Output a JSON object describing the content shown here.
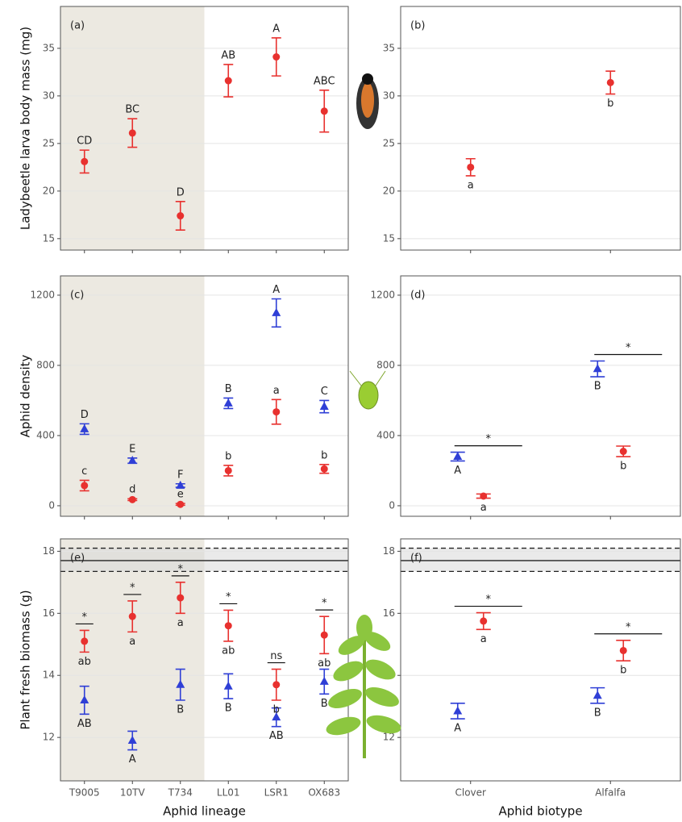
{
  "chart_data": [
    {
      "type": "errorbar",
      "panel_label": "(a)",
      "ylabel": "Ladybeetle larva body mass (mg)",
      "ylim": [
        13.8,
        39.4
      ],
      "yticks": [
        15,
        20,
        25,
        30,
        35
      ],
      "grid": true,
      "shaded_categories": 3,
      "series": [
        {
          "color": "#e8312f",
          "marker": "circle",
          "values": [
            23.1,
            26.1,
            17.4,
            31.6,
            34.1,
            28.4
          ],
          "errors": [
            1.2,
            1.5,
            1.5,
            1.7,
            2.0,
            2.2
          ],
          "letters": [
            "CD",
            "BC",
            "D",
            "AB",
            "A",
            "ABC"
          ]
        }
      ]
    },
    {
      "type": "errorbar",
      "panel_label": "(b)",
      "ylim": [
        13.8,
        39.4
      ],
      "yticks": [
        15,
        20,
        25,
        30,
        35
      ],
      "grid": true,
      "series": [
        {
          "color": "#e8312f",
          "marker": "circle",
          "values": [
            22.5,
            31.4
          ],
          "errors": [
            0.9,
            1.2
          ],
          "letters": [
            "a",
            "b"
          ]
        }
      ]
    },
    {
      "type": "errorbar",
      "panel_label": "(c)",
      "ylabel": "Aphid density",
      "ylim": [
        -60,
        1310
      ],
      "yticks": [
        0,
        400,
        800,
        1200
      ],
      "grid": true,
      "shaded_categories": 3,
      "series": [
        {
          "color": "#2f3fd6",
          "marker": "triangle",
          "values": [
            437,
            257,
            115,
            584,
            1099,
            565
          ],
          "errors": [
            30,
            15,
            10,
            30,
            80,
            35
          ],
          "letters": [
            "D",
            "E",
            "F",
            "B",
            "A",
            "C"
          ]
        },
        {
          "color": "#e8312f",
          "marker": "circle",
          "values": [
            115,
            35,
            8,
            200,
            535,
            210
          ],
          "errors": [
            30,
            5,
            5,
            30,
            70,
            25
          ],
          "letters": [
            "c",
            "d",
            "e",
            "b",
            "a",
            "b"
          ]
        }
      ]
    },
    {
      "type": "errorbar",
      "panel_label": "(d)",
      "ylim": [
        -60,
        1310
      ],
      "yticks": [
        0,
        400,
        800,
        1200
      ],
      "grid": true,
      "series": [
        {
          "color": "#2f3fd6",
          "marker": "triangle",
          "values": [
            280,
            780
          ],
          "errors": [
            25,
            45
          ],
          "letters": [
            "A",
            "B"
          ]
        },
        {
          "color": "#e8312f",
          "marker": "circle",
          "values": [
            55,
            310
          ],
          "errors": [
            12,
            30
          ],
          "letters": [
            "a",
            "b"
          ]
        }
      ],
      "significance": [
        "*",
        "*"
      ]
    },
    {
      "type": "errorbar",
      "panel_label": "(e)",
      "ylabel": "Plant fresh biomass (g)",
      "xlabel": "Aphid lineage",
      "ylim": [
        10.6,
        18.4
      ],
      "yticks": [
        12,
        14,
        16,
        18
      ],
      "grid": true,
      "shaded_categories": 3,
      "categories": [
        "T9005",
        "10TV",
        "T734",
        "LL01",
        "LSR1",
        "OX683"
      ],
      "reference_lines": [
        {
          "value": 17.7,
          "style": "solid"
        },
        {
          "value": 18.1,
          "style": "dashed"
        },
        {
          "value": 17.35,
          "style": "dashed"
        }
      ],
      "series": [
        {
          "color": "#2f3fd6",
          "marker": "triangle",
          "values": [
            13.2,
            11.9,
            13.7,
            13.65,
            12.65,
            13.8
          ],
          "errors": [
            0.45,
            0.3,
            0.5,
            0.4,
            0.3,
            0.4
          ],
          "letters": [
            "AB",
            "A",
            "B",
            "B",
            "AB",
            "B"
          ]
        },
        {
          "color": "#e8312f",
          "marker": "circle",
          "values": [
            15.1,
            15.9,
            16.5,
            15.6,
            13.7,
            15.3
          ],
          "errors": [
            0.35,
            0.5,
            0.5,
            0.5,
            0.5,
            0.6
          ],
          "letters": [
            "ab",
            "a",
            "a",
            "ab",
            "b",
            "ab"
          ]
        }
      ],
      "significance": [
        "*",
        "*",
        "*",
        "*",
        "ns",
        "*"
      ]
    },
    {
      "type": "errorbar",
      "panel_label": "(f)",
      "xlabel": "Aphid biotype",
      "ylim": [
        10.6,
        18.4
      ],
      "yticks": [
        12,
        14,
        16,
        18
      ],
      "grid": true,
      "categories": [
        "Clover",
        "Alfalfa"
      ],
      "reference_lines": [
        {
          "value": 17.7,
          "style": "solid"
        },
        {
          "value": 18.1,
          "style": "dashed"
        },
        {
          "value": 17.35,
          "style": "dashed"
        }
      ],
      "series": [
        {
          "color": "#2f3fd6",
          "marker": "triangle",
          "values": [
            12.85,
            13.35
          ],
          "errors": [
            0.25,
            0.25
          ],
          "letters": [
            "A",
            "B"
          ]
        },
        {
          "color": "#e8312f",
          "marker": "circle",
          "values": [
            15.75,
            14.8
          ],
          "errors": [
            0.27,
            0.33
          ],
          "letters": [
            "a",
            "b"
          ]
        }
      ],
      "significance": [
        "*",
        "*"
      ]
    }
  ]
}
